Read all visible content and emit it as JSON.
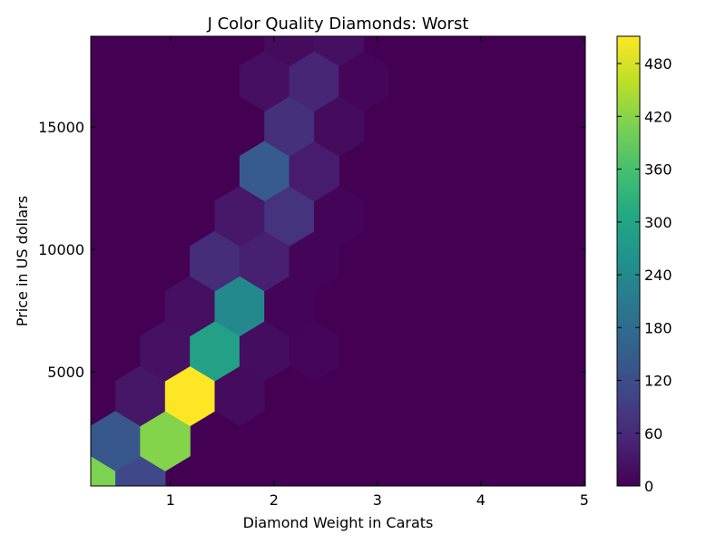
{
  "chart_data": {
    "type": "hexbin",
    "title": "J Color Quality Diamonds: Worst",
    "xlabel": "Diamond Weight in Carats",
    "ylabel": "Price in US dollars",
    "xlim": [
      0.23,
      5.01
    ],
    "ylim": [
      335,
      18710
    ],
    "xticks": [
      1,
      2,
      3,
      4,
      5
    ],
    "yticks": [
      5000,
      10000,
      15000
    ],
    "hex_size": {
      "dx": 0.48,
      "dy": 1838
    },
    "colormap": "viridis",
    "color_range": [
      0,
      511
    ],
    "colorbar_ticks": [
      0,
      60,
      120,
      180,
      240,
      300,
      360,
      420,
      480
    ],
    "background_count": 0,
    "bins": [
      {
        "x": 0.23,
        "y": 335,
        "count": 411
      },
      {
        "x": 0.71,
        "y": 335,
        "count": 110
      },
      {
        "x": 0.47,
        "y": 2173,
        "count": 140
      },
      {
        "x": 0.95,
        "y": 2173,
        "count": 416
      },
      {
        "x": 0.71,
        "y": 4011,
        "count": 30
      },
      {
        "x": 1.19,
        "y": 4011,
        "count": 511
      },
      {
        "x": 1.67,
        "y": 4011,
        "count": 14
      },
      {
        "x": 0.95,
        "y": 5849,
        "count": 24
      },
      {
        "x": 1.43,
        "y": 5849,
        "count": 290
      },
      {
        "x": 1.91,
        "y": 5849,
        "count": 18
      },
      {
        "x": 2.39,
        "y": 5849,
        "count": 8
      },
      {
        "x": 1.19,
        "y": 7687,
        "count": 20
      },
      {
        "x": 1.67,
        "y": 7687,
        "count": 240
      },
      {
        "x": 2.15,
        "y": 7687,
        "count": 4
      },
      {
        "x": 1.43,
        "y": 9525,
        "count": 65
      },
      {
        "x": 1.91,
        "y": 9525,
        "count": 45
      },
      {
        "x": 2.39,
        "y": 9525,
        "count": 6
      },
      {
        "x": 1.67,
        "y": 11363,
        "count": 32
      },
      {
        "x": 2.15,
        "y": 11363,
        "count": 75
      },
      {
        "x": 2.63,
        "y": 11363,
        "count": 6
      },
      {
        "x": 1.91,
        "y": 13201,
        "count": 145
      },
      {
        "x": 2.39,
        "y": 13201,
        "count": 40
      },
      {
        "x": 2.15,
        "y": 15039,
        "count": 70
      },
      {
        "x": 2.63,
        "y": 15039,
        "count": 16
      },
      {
        "x": 1.91,
        "y": 16877,
        "count": 20
      },
      {
        "x": 2.39,
        "y": 16877,
        "count": 55
      },
      {
        "x": 2.87,
        "y": 16877,
        "count": 8
      },
      {
        "x": 2.15,
        "y": 18715,
        "count": 16
      },
      {
        "x": 2.63,
        "y": 18715,
        "count": 22
      }
    ]
  }
}
